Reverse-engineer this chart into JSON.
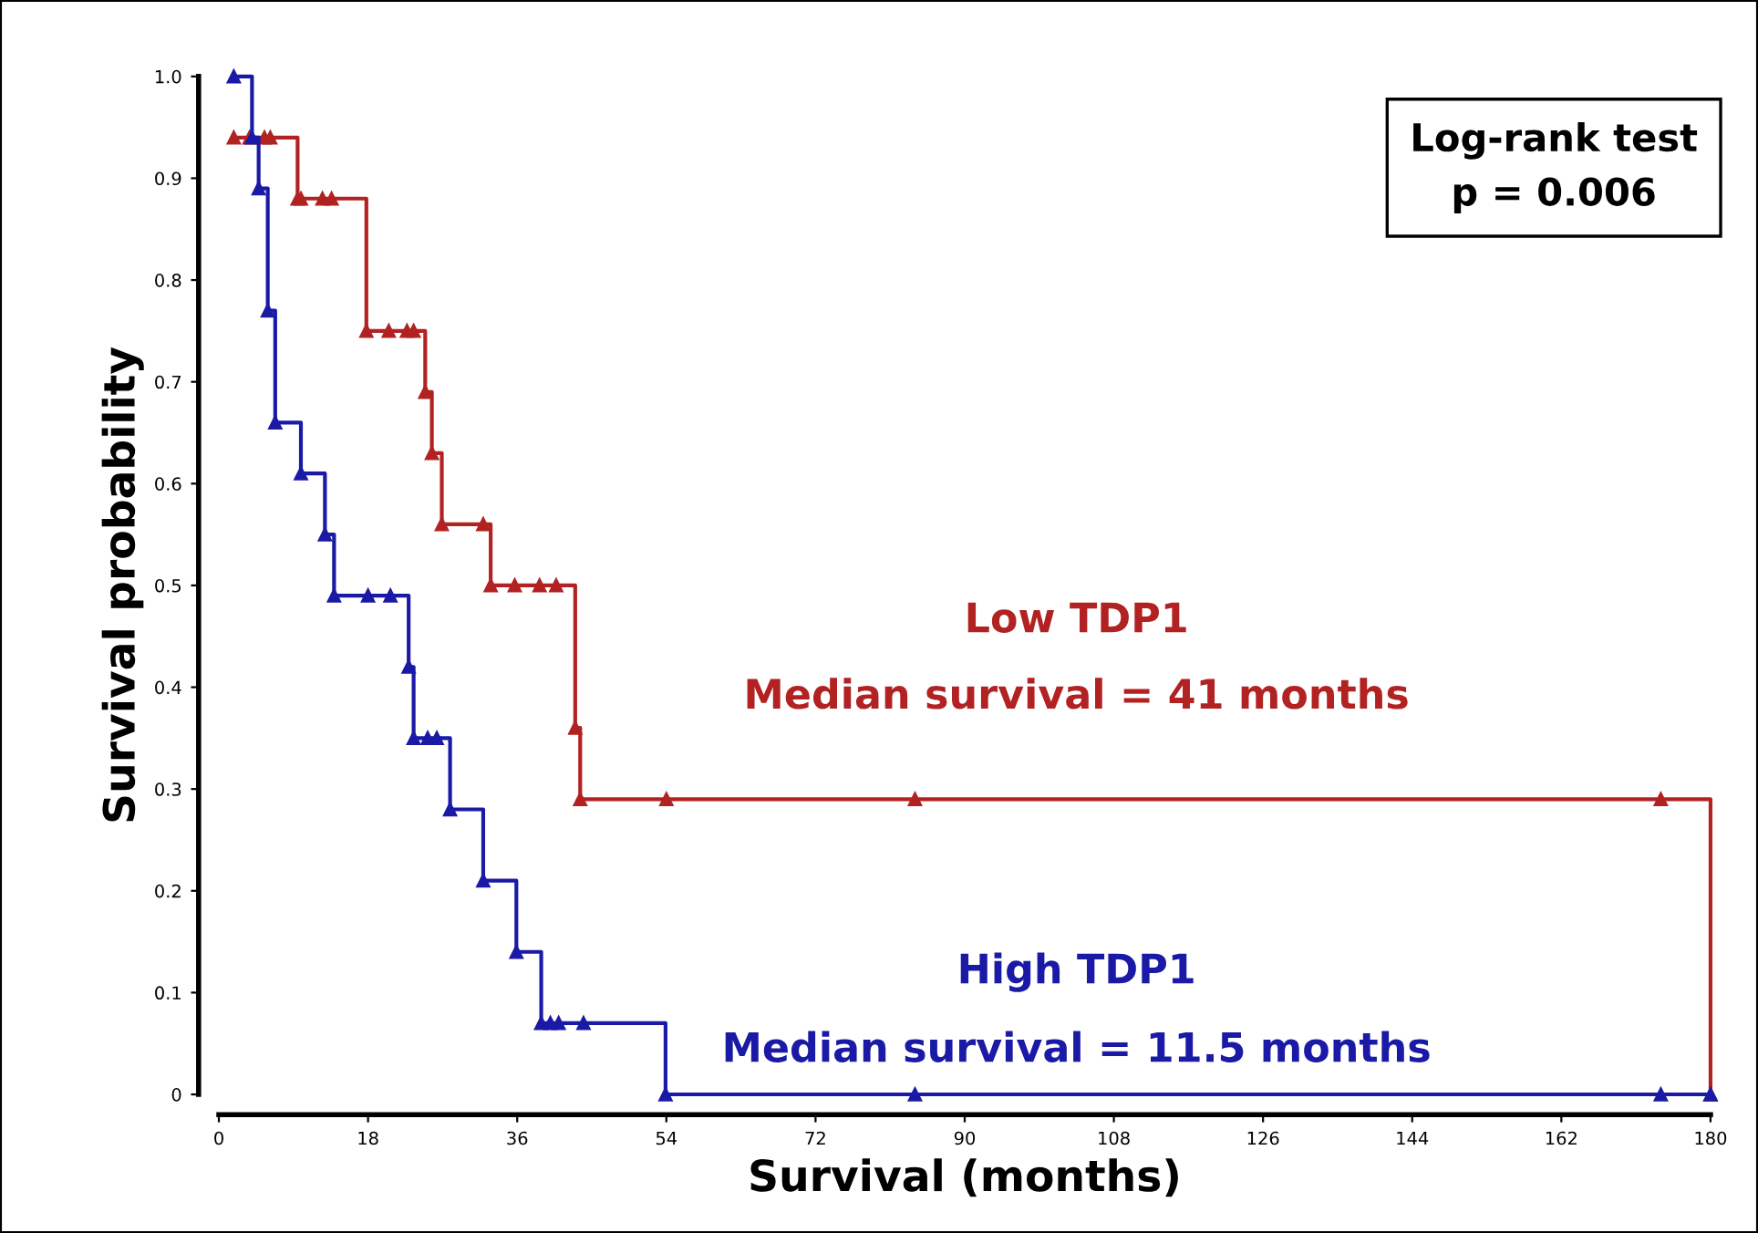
{
  "chart_data": {
    "type": "step",
    "xlabel": "Survival (months)",
    "ylabel": "Survival probability",
    "series": [
      {
        "name": "Low TDP1",
        "color": "#b22222",
        "x": [
          1.8,
          3.7,
          5.5,
          6.2,
          9.5,
          9.9,
          12.5,
          13.6,
          17.8,
          20.5,
          22.7,
          23.5,
          24.9,
          25.7,
          26.9,
          31.9,
          32.8,
          35.7,
          38.7,
          40.7,
          43,
          43.6,
          54,
          84,
          174,
          180
        ],
        "values": [
          0.94,
          0.94,
          0.94,
          0.94,
          0.88,
          0.88,
          0.88,
          0.88,
          0.75,
          0.75,
          0.75,
          0.75,
          0.69,
          0.63,
          0.56,
          0.56,
          0.5,
          0.5,
          0.5,
          0.5,
          0.36,
          0.29,
          0.29,
          0.29,
          0.29,
          0
        ]
      },
      {
        "name": "High TDP1",
        "color": "#1a1aa6",
        "x": [
          1.8,
          4,
          4.8,
          5.9,
          6.8,
          9.9,
          12.8,
          13.9,
          18,
          20.7,
          22.9,
          23.5,
          25.2,
          26.3,
          27.9,
          31.9,
          35.9,
          38.9,
          40,
          41,
          44,
          53.9,
          84,
          174,
          180
        ],
        "values": [
          1.0,
          0.94,
          0.89,
          0.77,
          0.66,
          0.61,
          0.55,
          0.49,
          0.49,
          0.49,
          0.42,
          0.35,
          0.35,
          0.35,
          0.28,
          0.21,
          0.14,
          0.07,
          0.07,
          0.07,
          0.07,
          0,
          0,
          0,
          0
        ]
      }
    ],
    "marker": "triangle",
    "xlim": [
      0,
      180
    ],
    "xticks": [
      0,
      18,
      36,
      54,
      72,
      90,
      108,
      126,
      144,
      162,
      180
    ],
    "ylim": [
      0,
      1.0
    ],
    "yticks": [
      0,
      0.1,
      0.2,
      0.3,
      0.4,
      0.5,
      0.6,
      0.7,
      0.8,
      0.9,
      {
        "value": 1.0,
        "label": "1.0"
      }
    ],
    "annotations": [
      "Log-rank test\np = 0.006",
      "Median survival = 41 months",
      "Median survival = 11.5 months"
    ],
    "grid": false,
    "legend": false
  }
}
